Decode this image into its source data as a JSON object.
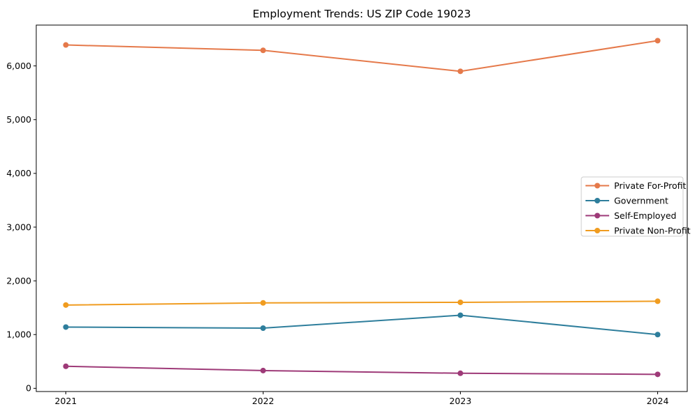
{
  "figure": {
    "title": "Employment Trends: US ZIP Code 19023"
  },
  "chart_data": {
    "type": "line",
    "title": "Employment Trends: US ZIP Code 19023",
    "xlabel": "",
    "ylabel": "",
    "x": [
      2021,
      2022,
      2023,
      2024
    ],
    "x_tick_labels": [
      "2021",
      "2022",
      "2023",
      "2024"
    ],
    "y_ticks": [
      0,
      1000,
      2000,
      3000,
      4000,
      5000,
      6000
    ],
    "y_tick_labels": [
      "0",
      "1,000",
      "2,000",
      "3,000",
      "4,000",
      "5,000",
      "6,000"
    ],
    "xlim": [
      2020.85,
      2024.15
    ],
    "ylim": [
      -60,
      6760
    ],
    "grid": false,
    "legend_position": "center right",
    "series": [
      {
        "name": "Private For-Profit",
        "color": "#e5794a",
        "values": [
          6390,
          6290,
          5900,
          6470
        ]
      },
      {
        "name": "Government",
        "color": "#2e7e9c",
        "values": [
          1140,
          1120,
          1360,
          1000
        ]
      },
      {
        "name": "Self-Employed",
        "color": "#9e3a78",
        "values": [
          410,
          330,
          280,
          260
        ]
      },
      {
        "name": "Private Non-Profit",
        "color": "#f09c20",
        "values": [
          1550,
          1590,
          1600,
          1620
        ]
      }
    ]
  }
}
